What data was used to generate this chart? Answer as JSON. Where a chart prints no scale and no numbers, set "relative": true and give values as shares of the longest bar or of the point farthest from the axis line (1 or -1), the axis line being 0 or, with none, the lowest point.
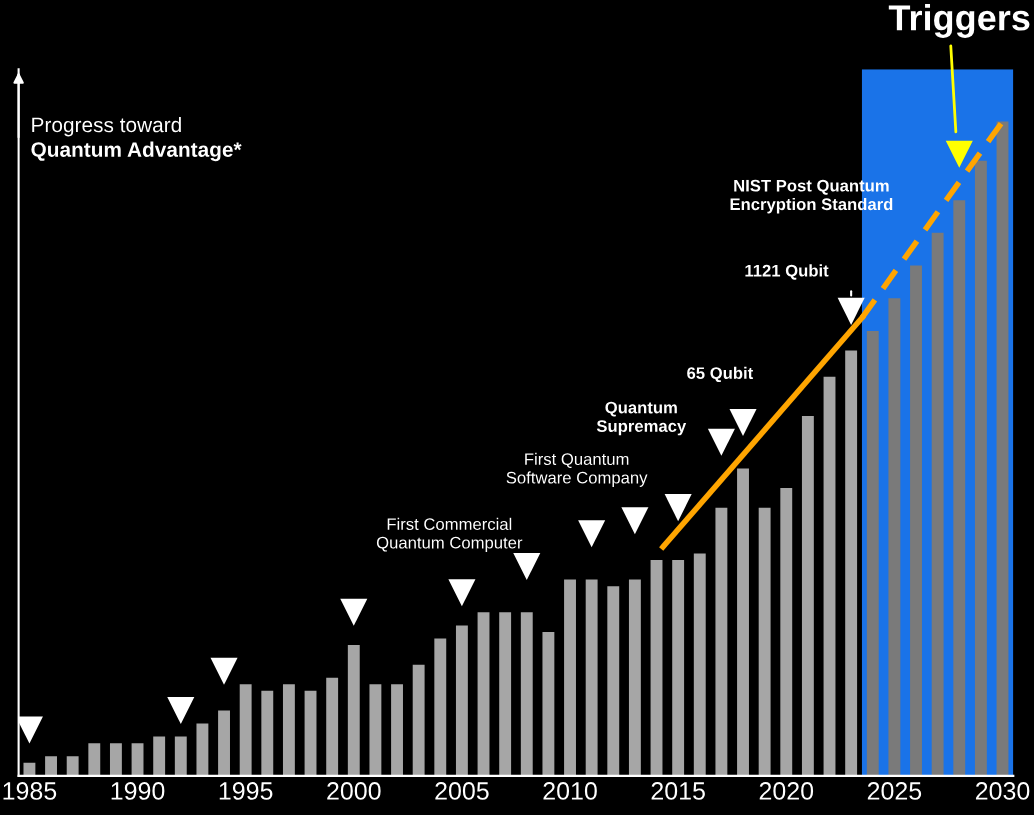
{
  "chart_data": {
    "type": "bar",
    "relative": true,
    "ylabel": "Progress toward\nQuantum Advantage*",
    "x": [
      1985,
      1986,
      1987,
      1988,
      1989,
      1990,
      1991,
      1992,
      1993,
      1994,
      1995,
      1996,
      1997,
      1998,
      1999,
      2000,
      2001,
      2002,
      2003,
      2004,
      2005,
      2006,
      2007,
      2008,
      2009,
      2010,
      2011,
      2012,
      2013,
      2014,
      2015,
      2016,
      2017,
      2018,
      2019,
      2020,
      2021,
      2022,
      2023,
      2024,
      2025,
      2026,
      2027,
      2028,
      2029,
      2030
    ],
    "xlim": [
      1984.5,
      2030.5
    ],
    "xticks": [
      1985,
      1990,
      1995,
      2000,
      2005,
      2010,
      2015,
      2020,
      2025,
      2030
    ],
    "series": [
      {
        "values": [
          0.02,
          0.03,
          0.03,
          0.05,
          0.05,
          0.05,
          0.06,
          0.06,
          0.08,
          0.1,
          0.14,
          0.13,
          0.14,
          0.13,
          0.15,
          0.2,
          0.14,
          0.14,
          0.17,
          0.21,
          0.23,
          0.25,
          0.25,
          0.25,
          0.22,
          0.3,
          0.3,
          0.29,
          0.3,
          0.33,
          0.33,
          0.34,
          0.41,
          0.47,
          0.41,
          0.44,
          0.55,
          0.61,
          0.65,
          0.68,
          0.73,
          0.78,
          0.83,
          0.88,
          0.94,
          1
        ],
        "colors": [
          "#a6a6a6",
          "#a6a6a6",
          "#a6a6a6",
          "#a6a6a6",
          "#a6a6a6",
          "#a6a6a6",
          "#a6a6a6",
          "#a6a6a6",
          "#a6a6a6",
          "#a6a6a6",
          "#a6a6a6",
          "#a6a6a6",
          "#a6a6a6",
          "#a6a6a6",
          "#a6a6a6",
          "#a6a6a6",
          "#a6a6a6",
          "#a6a6a6",
          "#a6a6a6",
          "#a6a6a6",
          "#a6a6a6",
          "#a6a6a6",
          "#a6a6a6",
          "#a6a6a6",
          "#a6a6a6",
          "#a6a6a6",
          "#a6a6a6",
          "#a6a6a6",
          "#a6a6a6",
          "#a6a6a6",
          "#a6a6a6",
          "#a6a6a6",
          "#a6a6a6",
          "#a6a6a6",
          "#a6a6a6",
          "#a6a6a6",
          "#a6a6a6",
          "#a6a6a6",
          "#a6a6a6",
          "#7a7a7a",
          "#7a7a7a",
          "#7a7a7a",
          "#7a7a7a",
          "#7a7a7a",
          "#7a7a7a",
          "#7a7a7a"
        ]
      },
      {
        "type": "line",
        "x": [
          2014.3,
          2023.5
        ],
        "values": [
          0.35,
          0.7
        ],
        "color": "#ffa500",
        "line_style": "solid"
      },
      {
        "type": "line",
        "x": [
          2023.5,
          2030
        ],
        "values": [
          0.7,
          1.0
        ],
        "color": "#ffa500",
        "line_style": "dashed"
      },
      {
        "type": "scatter",
        "marker": "triangle",
        "x": [
          1985,
          1992,
          1994,
          2000,
          2005,
          2008,
          2011,
          2013,
          2015,
          2017,
          2018,
          2023,
          2028
        ],
        "values": [
          0.07,
          0.1,
          0.16,
          0.25,
          0.28,
          0.32,
          0.37,
          0.39,
          0.41,
          0.51,
          0.54,
          0.71,
          0.95
        ],
        "colors": [
          "#ffffff",
          "#ffffff",
          "#ffffff",
          "#ffffff",
          "#ffffff",
          "#ffffff",
          "#ffffff",
          "#ffffff",
          "#ffffff",
          "#ffffff",
          "#ffffff",
          "#ffffff",
          "#ffff00"
        ]
      }
    ],
    "bands": [
      {
        "axis": "x",
        "from": 2023.5,
        "to": 2030.5,
        "label": "Triggers",
        "color": "#1a73e8"
      }
    ],
    "annotations": [
      "First Commercial\nQuantum Computer",
      "First Quantum\nSoftware Company",
      "Quantum\nSupremacy",
      "65 Qubit",
      "1121 Qubit",
      "NIST Post Quantum\nEncryption Standard"
    ],
    "grid": false
  }
}
